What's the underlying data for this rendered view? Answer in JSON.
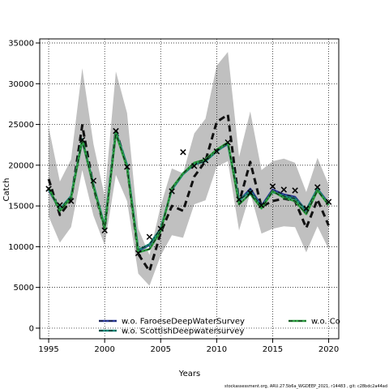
{
  "chart_data": {
    "type": "line",
    "title": "",
    "xlabel": "Years",
    "ylabel": "Catch",
    "xlim": [
      1994.2,
      2020.9
    ],
    "ylim": [
      -1300,
      35500
    ],
    "xticks": [
      1995,
      2000,
      2005,
      2010,
      2015,
      2020
    ],
    "yticks": [
      0,
      5000,
      10000,
      15000,
      20000,
      25000,
      30000,
      35000
    ],
    "grid": true,
    "colors": {
      "band": "#c0c0c0",
      "base": "#111111",
      "faroese": "#2a3a9a",
      "scottish": "#1a8a7a",
      "third": "#2aa040",
      "obs": "#000000"
    },
    "confidence_band": {
      "years": [
        1995,
        1996,
        1997,
        1998,
        1999,
        2000,
        2001,
        2002,
        2003,
        2004,
        2005,
        2006,
        2007,
        2008,
        2009,
        2010,
        2011,
        2012,
        2013,
        2014,
        2015,
        2016,
        2017,
        2018,
        2019,
        2020
      ],
      "upper": [
        24700,
        18000,
        20700,
        31900,
        22600,
        16200,
        31500,
        26400,
        12200,
        9000,
        15000,
        19600,
        19000,
        23900,
        25700,
        32200,
        33900,
        21000,
        26600,
        19400,
        20500,
        20800,
        20300,
        16700,
        20900,
        17600
      ],
      "lower": [
        13700,
        10500,
        12400,
        19400,
        13800,
        10200,
        18800,
        15600,
        6700,
        5200,
        8900,
        11400,
        11100,
        15200,
        15700,
        19800,
        20500,
        12000,
        16600,
        11600,
        12200,
        12500,
        12400,
        9300,
        12500,
        9700
      ]
    },
    "series": [
      {
        "name": "",
        "style": "dashed",
        "x": [
          1995,
          1996,
          1997,
          1998,
          1999,
          2000,
          2001,
          2002,
          2003,
          2004,
          2005,
          2006,
          2007,
          2008,
          2009,
          2010,
          2011,
          2012,
          2013,
          2014,
          2015,
          2016,
          2017,
          2018,
          2019,
          2020
        ],
        "y": [
          18300,
          13900,
          15700,
          24900,
          17300,
          12200,
          24300,
          19800,
          9100,
          7000,
          11700,
          15000,
          14400,
          18600,
          20500,
          25300,
          26200,
          15400,
          20400,
          14900,
          15600,
          15900,
          15600,
          12300,
          15800,
          12600
        ]
      },
      {
        "name": "w.o. FaroeseDeepWaterSurvey",
        "style": "dotdash",
        "x": [
          1995,
          1996,
          1997,
          1998,
          1999,
          2000,
          2001,
          2002,
          2003,
          2004,
          2005,
          2006,
          2007,
          2008,
          2009,
          2010,
          2011,
          2012,
          2013,
          2014,
          2015,
          2016,
          2017,
          2018,
          2019,
          2020
        ],
        "y": [
          17000,
          14500,
          16100,
          23000,
          17500,
          12400,
          24000,
          19900,
          9500,
          10200,
          12100,
          17100,
          19000,
          20200,
          20600,
          21800,
          22600,
          15600,
          17100,
          15000,
          17000,
          16400,
          16100,
          14400,
          17100,
          15300
        ]
      },
      {
        "name": "w.o. ScottishDeepwatersurvey",
        "style": "dotdash",
        "x": [
          1995,
          1996,
          1997,
          1998,
          1999,
          2000,
          2001,
          2002,
          2003,
          2004,
          2005,
          2006,
          2007,
          2008,
          2009,
          2010,
          2011,
          2012,
          2013,
          2014,
          2015,
          2016,
          2017,
          2018,
          2019,
          2020
        ],
        "y": [
          17100,
          14600,
          16200,
          23200,
          17600,
          12500,
          24100,
          20000,
          9600,
          10300,
          12200,
          17000,
          18900,
          20100,
          20500,
          21700,
          22700,
          15700,
          16800,
          14900,
          16700,
          16200,
          15900,
          14500,
          17100,
          15100
        ]
      },
      {
        "name": "w.o. Co",
        "style": "dotdash",
        "x": [
          1995,
          1996,
          1997,
          1998,
          1999,
          2000,
          2001,
          2002,
          2003,
          2004,
          2005,
          2006,
          2007,
          2008,
          2009,
          2010,
          2011,
          2012,
          2013,
          2014,
          2015,
          2016,
          2017,
          2018,
          2019,
          2020
        ],
        "y": [
          17200,
          14400,
          16000,
          23100,
          17400,
          12300,
          23900,
          19700,
          9300,
          9700,
          11900,
          17200,
          19000,
          20300,
          20700,
          21900,
          22800,
          15200,
          16500,
          14700,
          16800,
          16000,
          15600,
          14000,
          16900,
          15100
        ]
      }
    ],
    "observed": {
      "marker": "x",
      "x": [
        1995,
        1996,
        1997,
        1998,
        1999,
        2000,
        2001,
        2002,
        2003,
        2004,
        2005,
        2006,
        2007,
        2008,
        2009,
        2010,
        2011,
        2012,
        2013,
        2014,
        2015,
        2016,
        2017,
        2018,
        2019,
        2020
      ],
      "y": [
        17100,
        15100,
        15600,
        23100,
        18100,
        12000,
        24200,
        19800,
        9200,
        11200,
        12200,
        16800,
        21600,
        19900,
        20600,
        21700,
        22800,
        15800,
        16600,
        15100,
        17400,
        17000,
        16900,
        14700,
        17300,
        15500
      ]
    },
    "legend": [
      "w.o. FaroeseDeepWaterSurvey",
      "w.o. ScottishDeepwatersurvey",
      "w.o. Co"
    ]
  },
  "footer": "stockassessment.org, ARU.27.5b6a_WGDEEP_2021, r14483 , git: c28bdc2a44ad"
}
